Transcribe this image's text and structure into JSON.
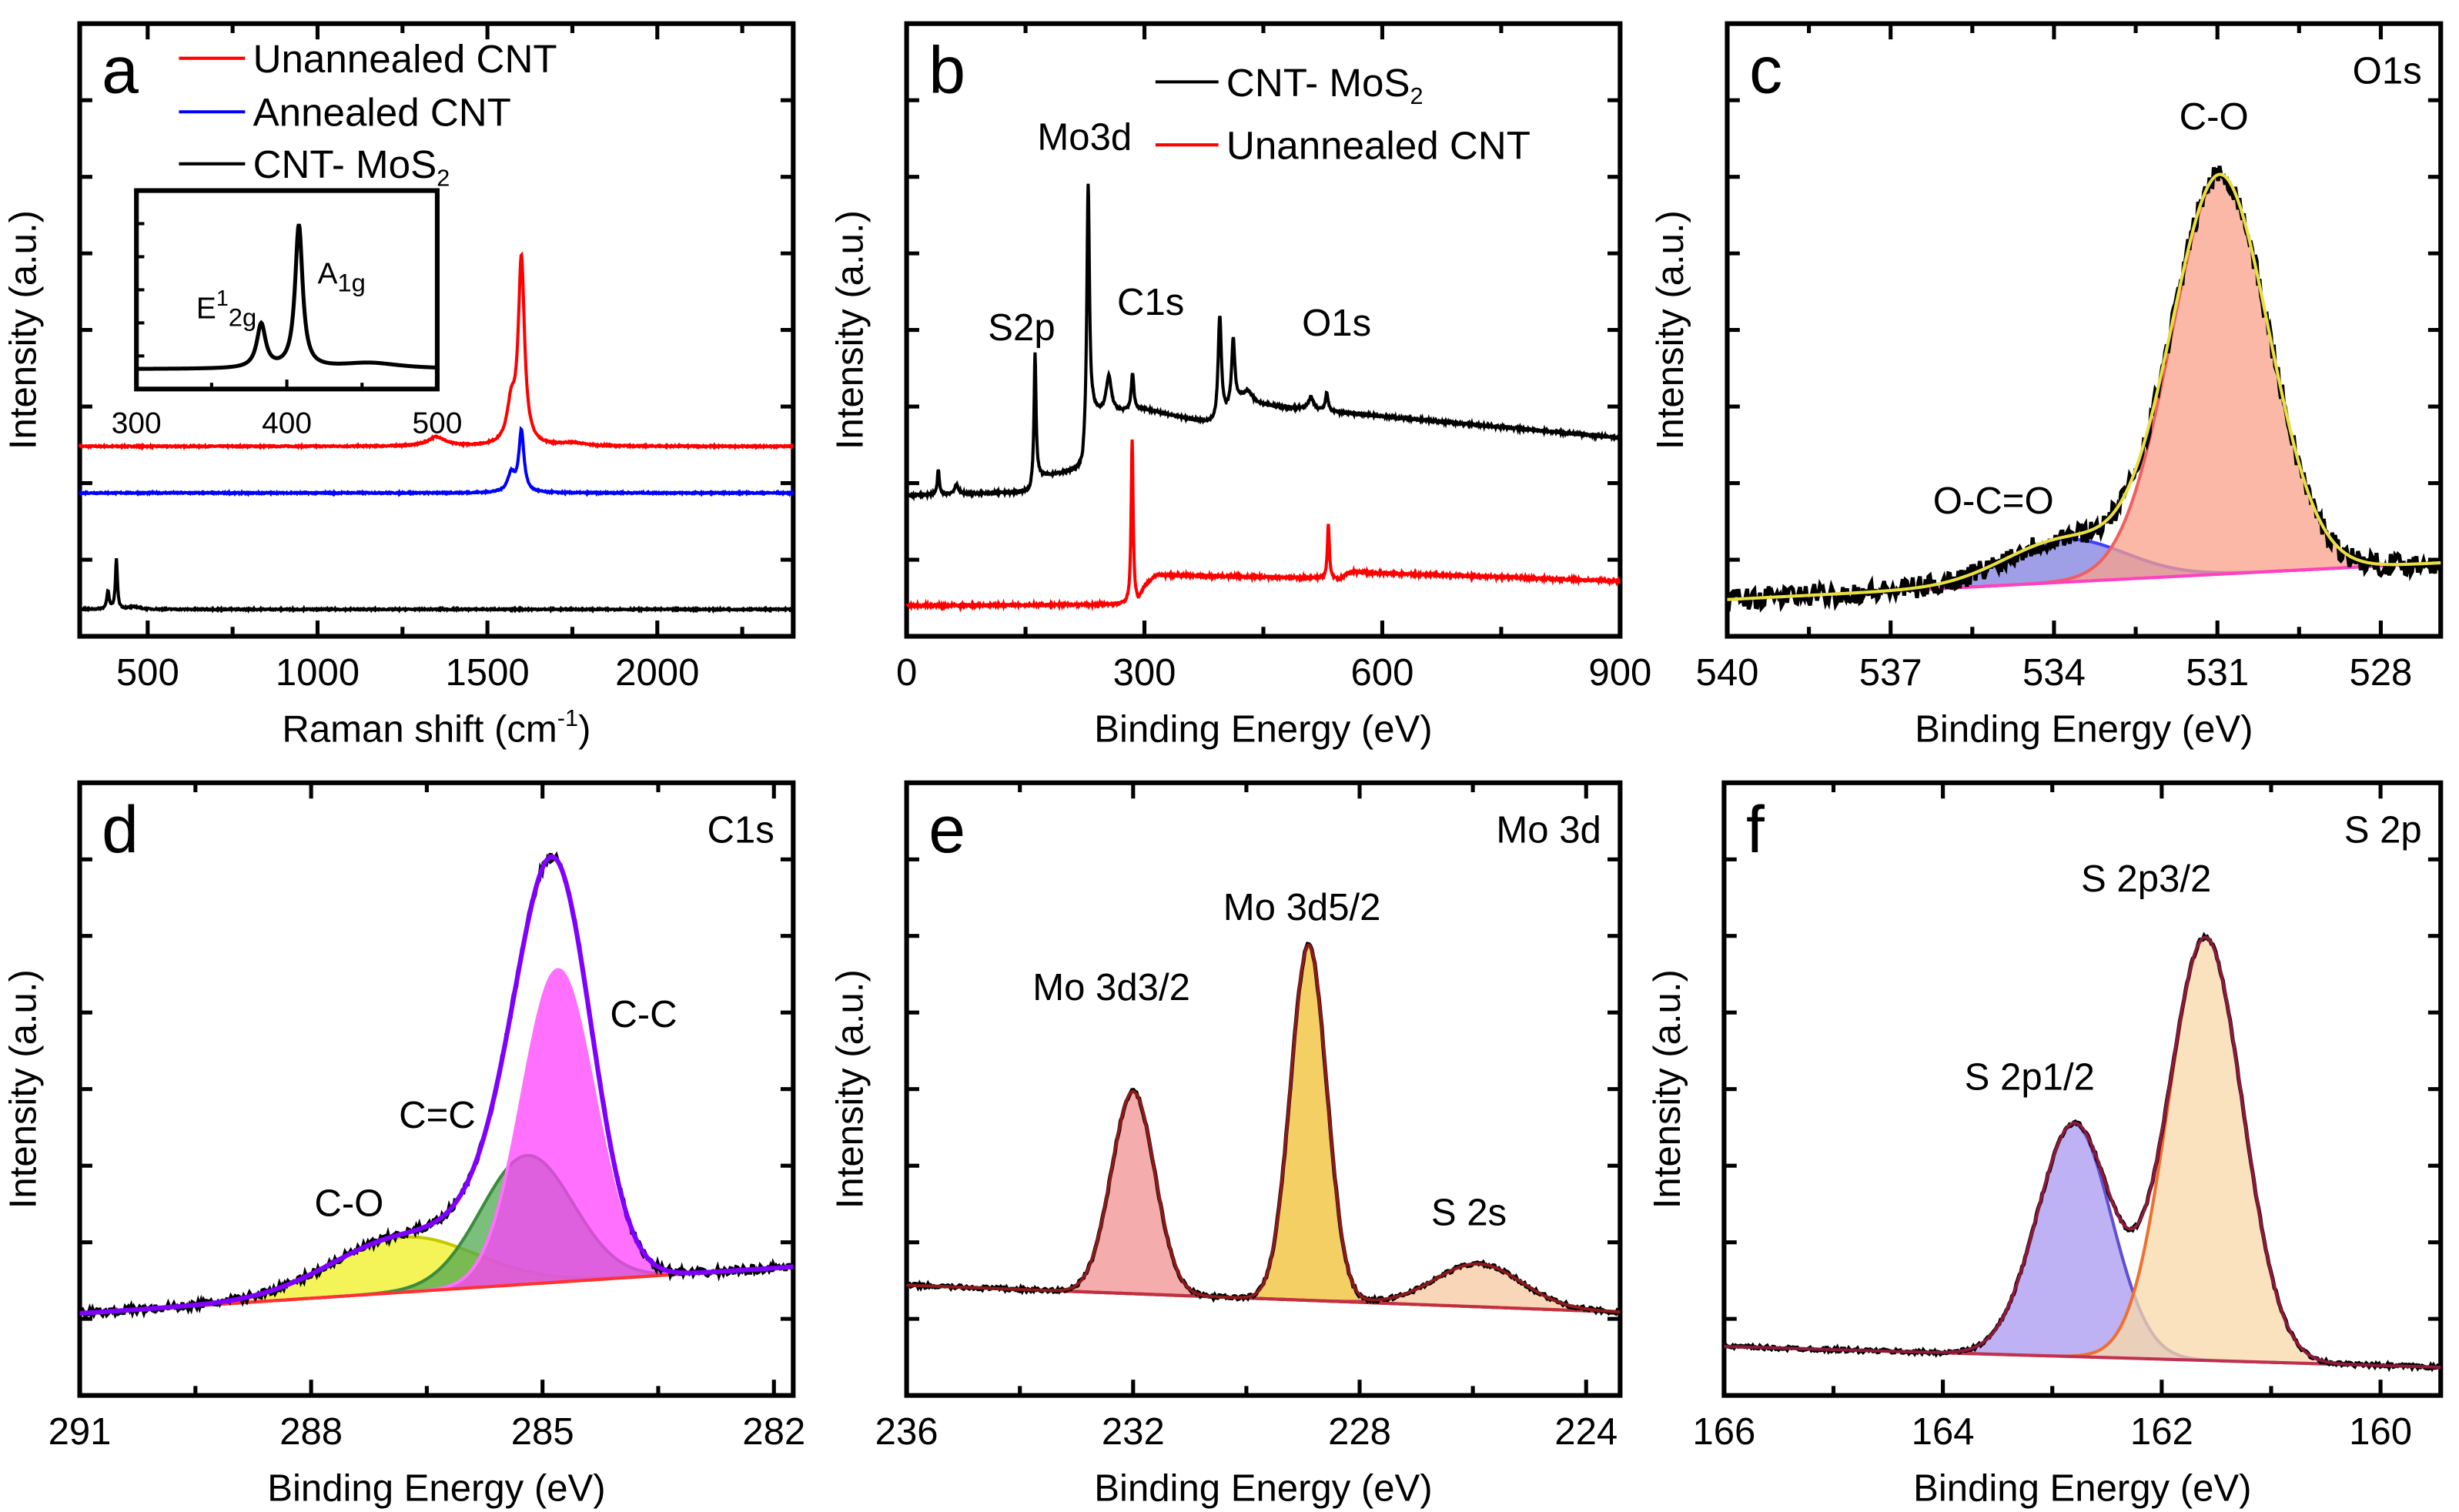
{
  "chart_data": [
    {
      "panel": "a",
      "type": "line",
      "xlabel": {
        "text": "Raman shift (cm",
        "sup": "-1",
        "end": ")"
      },
      "ylabel": "Intensity (a.u.)",
      "xlim": [
        300,
        2400
      ],
      "ylim": [
        0,
        1
      ],
      "xticks": [
        "500",
        "1000",
        "1500",
        "2000"
      ],
      "grid": false,
      "legend_position": "top-left",
      "series": [
        {
          "name": "Unannealed CNT",
          "color": "#ff0000",
          "baseline": 0.31,
          "peaks": [
            {
              "center": 1350,
              "height": 0.015,
              "fwhm": 60
            },
            {
              "center": 1570,
              "height": 0.06,
              "fwhm": 30
            },
            {
              "center": 1600,
              "height": 0.3,
              "fwhm": 22
            },
            {
              "center": 1750,
              "height": 0.005,
              "fwhm": 80
            }
          ]
        },
        {
          "name": "Annealed CNT",
          "color": "#0000ff",
          "baseline": 0.234,
          "peaks": [
            {
              "center": 1570,
              "height": 0.03,
              "fwhm": 25
            },
            {
              "center": 1600,
              "height": 0.1,
              "fwhm": 18
            }
          ]
        },
        {
          "name": "CNT- MoS",
          "name_sub": "2",
          "color": "#000000",
          "baseline": 0.044,
          "peaks": [
            {
              "center": 383,
              "height": 0.03,
              "fwhm": 8
            },
            {
              "center": 408,
              "height": 0.082,
              "fwhm": 7
            },
            {
              "center": 460,
              "height": 0.004,
              "fwhm": 40
            }
          ]
        }
      ],
      "inset": {
        "xlim": [
          300,
          500
        ],
        "ylim": [
          0,
          1
        ],
        "xticks": [
          "300",
          "400",
          "500"
        ],
        "color": "#000000",
        "baseline": 0.1,
        "peaks": [
          {
            "center": 383,
            "height": 0.22,
            "fwhm": 7
          },
          {
            "center": 408,
            "height": 0.72,
            "fwhm": 6
          },
          {
            "center": 455,
            "height": 0.03,
            "fwhm": 50
          }
        ],
        "annotations": [
          {
            "text": "E",
            "sup": "1",
            "sub": "2g"
          },
          {
            "text": "A",
            "sub": "1g"
          }
        ]
      }
    },
    {
      "panel": "b",
      "type": "line",
      "xlabel": "Binding Energy (eV)",
      "ylabel": "Intensity (a.u.)",
      "xlim": [
        0,
        900
      ],
      "ylim": [
        0,
        1
      ],
      "xticks": [
        "0",
        "300",
        "600",
        "900"
      ],
      "grid": false,
      "legend_position": "top-right",
      "series": [
        {
          "name": "CNT- MoS",
          "name_sub": "2",
          "color": "#000000",
          "background": [
            [
              0,
              0.23
            ],
            [
              155,
              0.235
            ],
            [
              165,
              0.26
            ],
            [
              222,
              0.27
            ],
            [
              235,
              0.36
            ],
            [
              300,
              0.37
            ],
            [
              390,
              0.345
            ],
            [
              420,
              0.38
            ],
            [
              900,
              0.324
            ]
          ],
          "peaks": [
            {
              "center": 40,
              "height": 0.04,
              "fwhm": 3
            },
            {
              "center": 63,
              "height": 0.015,
              "fwhm": 6
            },
            {
              "center": 162,
              "height": 0.21,
              "fwhm": 3
            },
            {
              "center": 229,
              "height": 0.42,
              "fwhm": 4
            },
            {
              "center": 255,
              "height": 0.06,
              "fwhm": 8
            },
            {
              "center": 285,
              "height": 0.06,
              "fwhm": 4
            },
            {
              "center": 395,
              "height": 0.17,
              "fwhm": 5
            },
            {
              "center": 412,
              "height": 0.11,
              "fwhm": 5
            },
            {
              "center": 430,
              "height": 0.02,
              "fwhm": 15
            },
            {
              "center": 510,
              "height": 0.02,
              "fwhm": 8
            },
            {
              "center": 530,
              "height": 0.03,
              "fwhm": 4
            }
          ]
        },
        {
          "name": "Unannealed CNT",
          "color": "#ff0000",
          "background": [
            [
              0,
              0.05
            ],
            [
              283,
              0.052
            ],
            [
              292,
              0.055
            ],
            [
              300,
              0.08
            ],
            [
              315,
              0.1
            ],
            [
              520,
              0.095
            ],
            [
              545,
              0.093
            ],
            [
              560,
              0.105
            ],
            [
              900,
              0.09
            ]
          ],
          "peaks": [
            {
              "center": 284.5,
              "height": 0.27,
              "fwhm": 3
            },
            {
              "center": 532,
              "height": 0.09,
              "fwhm": 3
            }
          ]
        }
      ],
      "annotations": [
        "Mo3d",
        "S2p",
        "C1s",
        "O1s"
      ]
    },
    {
      "panel": "c",
      "type": "area",
      "label": "O1s",
      "xlabel": "Binding Energy (eV)",
      "ylabel": "Intensity (a.u.)",
      "xlim": [
        540,
        526.9
      ],
      "ylim": [
        0,
        1
      ],
      "xticks": [
        "540",
        "537",
        "534",
        "531",
        "528"
      ],
      "grid": false,
      "baseline": [
        0.06,
        0.12
      ],
      "baseline_color": "#ff40c0",
      "envelope_color": "#e8e040",
      "raw_color": "#000000",
      "components": [
        {
          "name": "O-C=O",
          "center": 533.8,
          "height": 0.07,
          "fwhm": 2.6,
          "fill": "#7f7fe0",
          "stroke": "#4040ff"
        },
        {
          "name": "C-O",
          "center": 530.95,
          "height": 0.65,
          "fwhm": 2.1,
          "fill": "#f9a08a",
          "stroke": "#f06060"
        }
      ],
      "annotations": [
        "C-O",
        "O-C=O"
      ]
    },
    {
      "panel": "d",
      "type": "area",
      "label": "C1s",
      "xlabel": "Binding Energy (eV)",
      "ylabel": "Intensity (a.u.)",
      "xlim": [
        291,
        281.75
      ],
      "ylim": [
        0,
        1
      ],
      "xticks": [
        "291",
        "288",
        "285",
        "282"
      ],
      "grid": false,
      "baseline": [
        0.134,
        0.21
      ],
      "baseline_color": "#ff3030",
      "envelope_color": "#8000ff",
      "raw_color": "#000000",
      "components": [
        {
          "name": "C-O",
          "center": 286.8,
          "height": 0.09,
          "fwhm": 2.2,
          "fill": "#f0f020",
          "stroke": "#c8c800"
        },
        {
          "name": "C=C",
          "center": 285.2,
          "height": 0.21,
          "fwhm": 1.4,
          "fill": "#50a850",
          "stroke": "#3c8c3c"
        },
        {
          "name": "C-C",
          "center": 284.8,
          "height": 0.51,
          "fwhm": 1.1,
          "fill": "#ff40ff",
          "stroke": "#ff70ff"
        }
      ],
      "annotations": [
        "C-C",
        "C=C",
        "C-O"
      ]
    },
    {
      "panel": "e",
      "type": "area",
      "label": "Mo 3d",
      "xlabel": "Binding Energy (eV)",
      "ylabel": "Intensity (a.u.)",
      "xlim": [
        236,
        223.4
      ],
      "ylim": [
        0,
        1
      ],
      "xticks": [
        "236",
        "232",
        "228",
        "224"
      ],
      "grid": false,
      "baseline": [
        0.18,
        0.136
      ],
      "baseline_color": "#c03040",
      "envelope_color": "#8b1a1a",
      "raw_color": "#000000",
      "components": [
        {
          "name": "Mo 3d3/2",
          "center": 232.0,
          "height": 0.33,
          "fwhm": 0.9,
          "fill": "#f09090",
          "stroke": "#c03040"
        },
        {
          "name": "Mo 3d5/2",
          "center": 228.9,
          "height": 0.58,
          "fwhm": 0.75,
          "fill": "#f0c030",
          "stroke": "#b08000"
        },
        {
          "name": "S 2s",
          "center": 225.9,
          "height": 0.07,
          "fwhm": 1.8,
          "fill": "#f8c8a0",
          "stroke": "#c04060"
        }
      ],
      "annotations": [
        "Mo 3d3/2",
        "Mo 3d5/2",
        "S 2s"
      ]
    },
    {
      "panel": "f",
      "type": "area",
      "label": "S 2p",
      "xlabel": "Binding Energy (eV)",
      "ylabel": "Intensity (a.u.)",
      "xlim": [
        166,
        159.45
      ],
      "ylim": [
        0,
        1
      ],
      "xticks": [
        "166",
        "164",
        "162",
        "160"
      ],
      "grid": false,
      "baseline": [
        0.08,
        0.046
      ],
      "baseline_color": "#c03050",
      "envelope_color": "#8b1a3a",
      "raw_color": "#000000",
      "components": [
        {
          "name": "S 2p1/2",
          "center": 162.8,
          "height": 0.38,
          "fwhm": 0.8,
          "fill": "#a898f0",
          "stroke": "#6050d0"
        },
        {
          "name": "S 2p3/2",
          "center": 161.6,
          "height": 0.69,
          "fwhm": 0.8,
          "fill": "#f8d8a8",
          "stroke": "#f07030"
        }
      ],
      "annotations": [
        "S 2p3/2",
        "S 2p1/2"
      ]
    }
  ]
}
